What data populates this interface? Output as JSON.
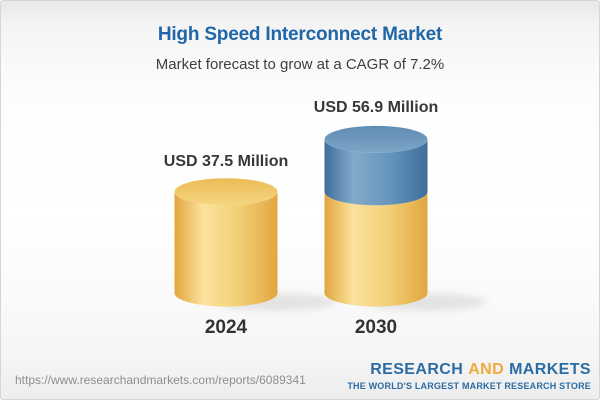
{
  "header": {
    "title": "High Speed Interconnect Market",
    "subtitle": "Market forecast to grow at a CAGR of 7.2%",
    "title_color": "#2166A8"
  },
  "chart_data": {
    "type": "bar",
    "subtype": "3d-stacked-cylinders",
    "title": "High Speed Interconnect Market",
    "subtitle": "Market forecast to grow at a CAGR of 7.2%",
    "unit": "USD Million",
    "cagr_percent": 7.2,
    "categories": [
      "2024",
      "2030"
    ],
    "values": [
      37.5,
      56.9
    ],
    "value_labels": [
      "USD 37.5 Million",
      "USD 56.9 Million"
    ],
    "series": [
      {
        "name": "base-2024-value",
        "color_key": "gold",
        "values": [
          37.5,
          37.5
        ]
      },
      {
        "name": "forecast-growth",
        "color_key": "blue",
        "values": [
          0,
          19.4
        ]
      }
    ],
    "legend": "none",
    "axes": "none",
    "colors": {
      "gold_body": [
        "#E2A63F",
        "#FBE29D",
        "#F3CF77",
        "#E2A63F"
      ],
      "gold_top": [
        "#ECBC55",
        "#F5D581"
      ],
      "blue_body": [
        "#3E6E9B",
        "#82AACB",
        "#6697BC",
        "#3E6E9B"
      ],
      "blue_top": [
        "#5F8CB3",
        "#7DA6C7"
      ],
      "shadow": "rgba(110,110,110,0.16)"
    }
  },
  "footer": {
    "url": "https://www.researchandmarkets.com/reports/6089341",
    "logo": {
      "word1": "RESEARCH",
      "word2": "AND",
      "word3": "MARKETS",
      "tagline": "THE WORLD'S LARGEST MARKET RESEARCH STORE",
      "blue": "#2C6CA4",
      "orange": "#F0A93B"
    }
  }
}
